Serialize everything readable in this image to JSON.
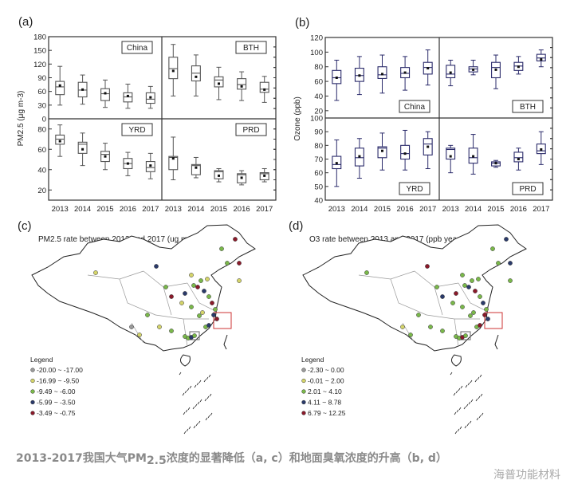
{
  "colors": {
    "axis": "#333333",
    "box_a": "#555555",
    "box_b": "#2a2a6a",
    "legend": [
      "#9a9a9a",
      "#d4d46a",
      "#7ab84a",
      "#2a3a6a",
      "#8a1a2a"
    ]
  },
  "chart_data": [
    {
      "type": "box",
      "panel_label": "(a)",
      "ylabel": "PM2.5 (μg m-3)",
      "categories": [
        "2013",
        "2014",
        "2015",
        "2016",
        "2017"
      ],
      "box_fields": [
        "whisker_low",
        "q1",
        "median",
        "q3",
        "whisker_high",
        "mean"
      ],
      "subplots": [
        {
          "region": "China",
          "ylim": [
            0,
            180
          ],
          "yticks": [
            0,
            30,
            60,
            90,
            120,
            150,
            180
          ],
          "boxes": [
            [
              30,
              53,
              70,
              82,
              115,
              73
            ],
            [
              32,
              48,
              63,
              80,
              96,
              64
            ],
            [
              25,
              40,
              55,
              66,
              85,
              56
            ],
            [
              23,
              37,
              48,
              57,
              76,
              50
            ],
            [
              23,
              34,
              43,
              57,
              71,
              47
            ]
          ]
        },
        {
          "region": "BTH",
          "ylim": [
            0,
            180
          ],
          "yticks": [],
          "boxes": [
            [
              50,
              88,
              110,
              135,
              163,
              105
            ],
            [
              50,
              83,
              100,
              116,
              140,
              92
            ],
            [
              42,
              70,
              85,
              92,
              113,
              77
            ],
            [
              40,
              65,
              75,
              88,
              103,
              71
            ],
            [
              36,
              58,
              65,
              80,
              93,
              64
            ]
          ]
        },
        {
          "region": "YRD",
          "ylim": [
            10,
            90
          ],
          "yticks": [
            20,
            40,
            60,
            80
          ],
          "boxes": [
            [
              53,
              65,
              70,
              74,
              84,
              68
            ],
            [
              44,
              56,
              65,
              67,
              76,
              60
            ],
            [
              40,
              48,
              55,
              58,
              66,
              53
            ],
            [
              34,
              41,
              46,
              51,
              57,
              46
            ],
            [
              31,
              38,
              42,
              48,
              56,
              44
            ]
          ]
        },
        {
          "region": "PRD",
          "ylim": [
            10,
            90
          ],
          "yticks": [],
          "boxes": [
            [
              30,
              40,
              52,
              53,
              72,
              51
            ],
            [
              32,
              35,
              44,
              45,
              52,
              42
            ],
            [
              28,
              31,
              38,
              39,
              41,
              34
            ],
            [
              25,
              27,
              35,
              36,
              39,
              32
            ],
            [
              28,
              30,
              36,
              37,
              41,
              34
            ]
          ]
        }
      ]
    },
    {
      "type": "box",
      "panel_label": "(b)",
      "ylabel": "Ozone (ppb)",
      "categories": [
        "2013",
        "2014",
        "2015",
        "2016",
        "2017"
      ],
      "box_fields": [
        "whisker_low",
        "q1",
        "median",
        "q3",
        "whisker_high",
        "mean"
      ],
      "subplots": [
        {
          "region": "China",
          "ylim": [
            10,
            120
          ],
          "yticks": [
            20,
            40,
            60,
            80,
            100,
            120
          ],
          "boxes": [
            [
              34,
              57,
              65,
              75,
              89,
              65
            ],
            [
              42,
              60,
              68,
              78,
              94,
              68
            ],
            [
              44,
              64,
              69,
              80,
              96,
              70
            ],
            [
              48,
              65,
              71,
              79,
              94,
              72
            ],
            [
              55,
              70,
              79,
              86,
              103,
              78
            ]
          ]
        },
        {
          "region": "BTH",
          "ylim": [
            10,
            120
          ],
          "yticks": [],
          "boxes": [
            [
              54,
              65,
              70,
              82,
              89,
              72
            ],
            [
              69,
              73,
              77,
              80,
              89,
              76
            ],
            [
              50,
              65,
              79,
              86,
              96,
              76
            ],
            [
              70,
              75,
              81,
              86,
              94,
              80
            ],
            [
              80,
              88,
              92,
              97,
              103,
              90
            ]
          ]
        },
        {
          "region": "YRD",
          "ylim": [
            40,
            100
          ],
          "yticks": [
            40,
            50,
            60,
            70,
            80,
            90,
            100
          ],
          "boxes": [
            [
              50,
              63,
              66,
              72,
              84,
              67
            ],
            [
              56,
              65,
              71,
              78,
              85,
              72
            ],
            [
              62,
              71,
              78,
              79,
              89,
              76
            ],
            [
              62,
              70,
              74,
              80,
              91,
              74
            ],
            [
              63,
              73,
              81,
              85,
              90,
              79
            ]
          ]
        },
        {
          "region": "PRD",
          "ylim": [
            40,
            100
          ],
          "yticks": [],
          "boxes": [
            [
              60,
              70,
              77,
              78,
              80,
              72
            ],
            [
              59,
              67,
              71,
              78,
              88,
              72
            ],
            [
              64,
              65,
              67,
              68,
              69,
              67
            ],
            [
              62,
              68,
              71,
              75,
              78,
              70
            ],
            [
              66,
              74,
              76,
              81,
              90,
              77
            ]
          ]
        }
      ]
    }
  ],
  "maps": [
    {
      "panel_label": "(c)",
      "title": "PM2.5 rate between 2013 and 2017 (ug m-3 year-1)",
      "legend_title": "Legend",
      "legend": [
        "-20.00 ~ -17.00",
        "-16.99 ~ -9.50",
        "-9.49 ~ -6.00",
        "-5.99 ~ -3.50",
        "-3.49 ~ -0.75"
      ]
    },
    {
      "panel_label": "(d)",
      "title": "O3 rate between 2013 and 2017 (ppb year-1)",
      "legend_title": "Legend",
      "legend": [
        "-2.30 ~ 0.00",
        "-0.01 ~ 2.00",
        "2.01 ~ 4.10",
        "4.11 ~ 8.78",
        "6.79 ~ 12.25"
      ]
    }
  ],
  "caption": {
    "prefix": "2013-2017我国大气PM",
    "sub": "2.5",
    "suffix": "浓度的显著降低（a, c）和地面臭氧浓度的升高（b, d）",
    "watermark": "海普功能材料"
  }
}
